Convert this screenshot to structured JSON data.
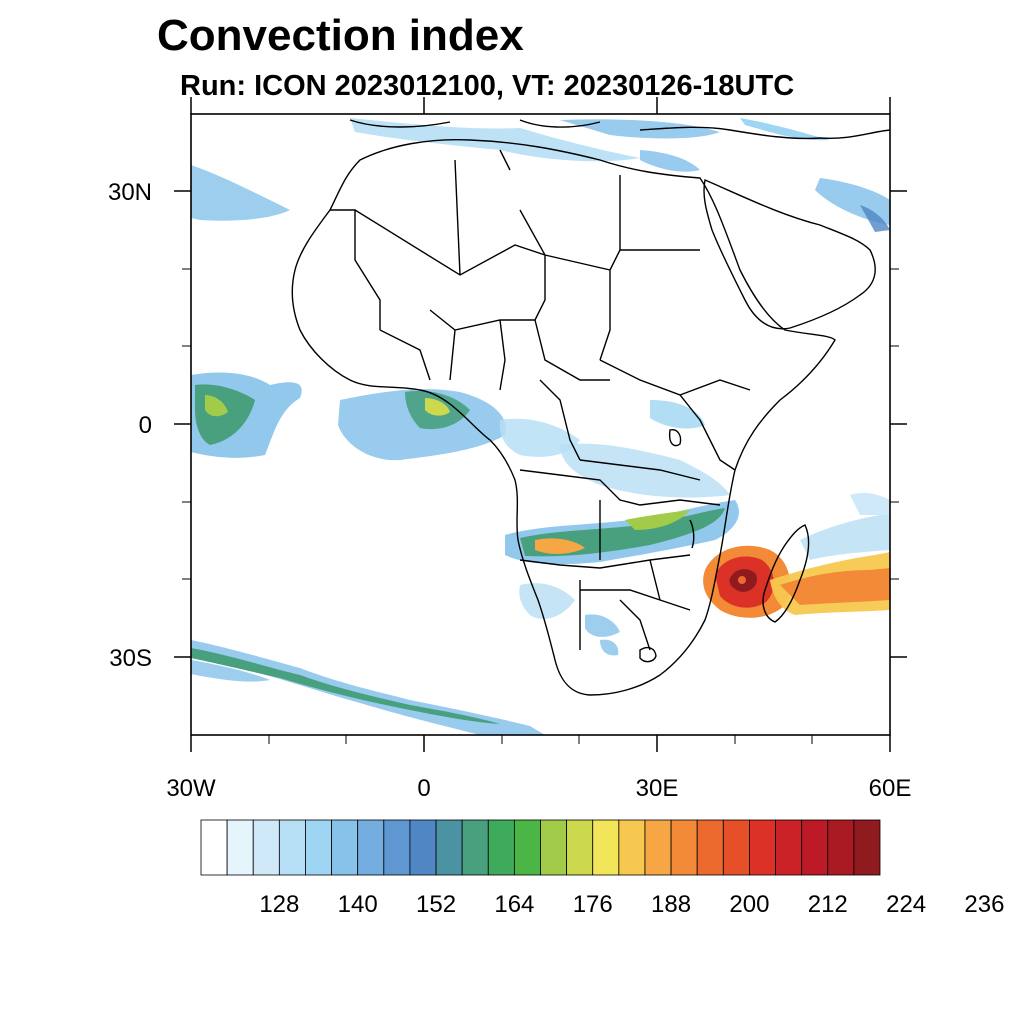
{
  "title": "Convection index",
  "subtitle": "Run: ICON 2023012100,  VT: 20230126-18UTC",
  "map": {
    "lon_range": [
      -30,
      60
    ],
    "lat_range": [
      -40,
      40
    ],
    "y_ticks": [
      {
        "lat": 30,
        "label": "30N"
      },
      {
        "lat": 0,
        "label": "0"
      },
      {
        "lat": -30,
        "label": "30S"
      }
    ],
    "x_ticks": [
      {
        "lon": -30,
        "label": "30W"
      },
      {
        "lon": 0,
        "label": "0"
      },
      {
        "lon": 30,
        "label": "30E"
      },
      {
        "lon": 60,
        "label": "60E"
      }
    ]
  },
  "colorbar": {
    "colors": [
      "#ffffff",
      "#e6f4fc",
      "#cfe9f8",
      "#b6dff5",
      "#9dd5f2",
      "#86c2ea",
      "#74addf",
      "#5f97d2",
      "#4f86c4",
      "#4b93a3",
      "#48a07f",
      "#3eaa5b",
      "#4bb546",
      "#a2cb4a",
      "#ccd94c",
      "#f2e55a",
      "#f7c84f",
      "#f6a643",
      "#f28a37",
      "#ec6a2e",
      "#e65028",
      "#db3127",
      "#cb2227",
      "#bb1a26",
      "#aa1a22",
      "#8f1b1e"
    ],
    "labels": [
      "128",
      "140",
      "152",
      "164",
      "176",
      "188",
      "200",
      "212",
      "224",
      "236"
    ]
  },
  "chart_data": {
    "type": "heatmap",
    "title": "Convection index",
    "subtitle": "Run: ICON 2023012100,  VT: 20230126-18UTC",
    "x_range": [
      -30,
      60
    ],
    "y_range": [
      -40,
      40
    ],
    "levels": [
      128,
      140,
      152,
      164,
      176,
      188,
      200,
      212,
      224,
      236
    ]
  }
}
